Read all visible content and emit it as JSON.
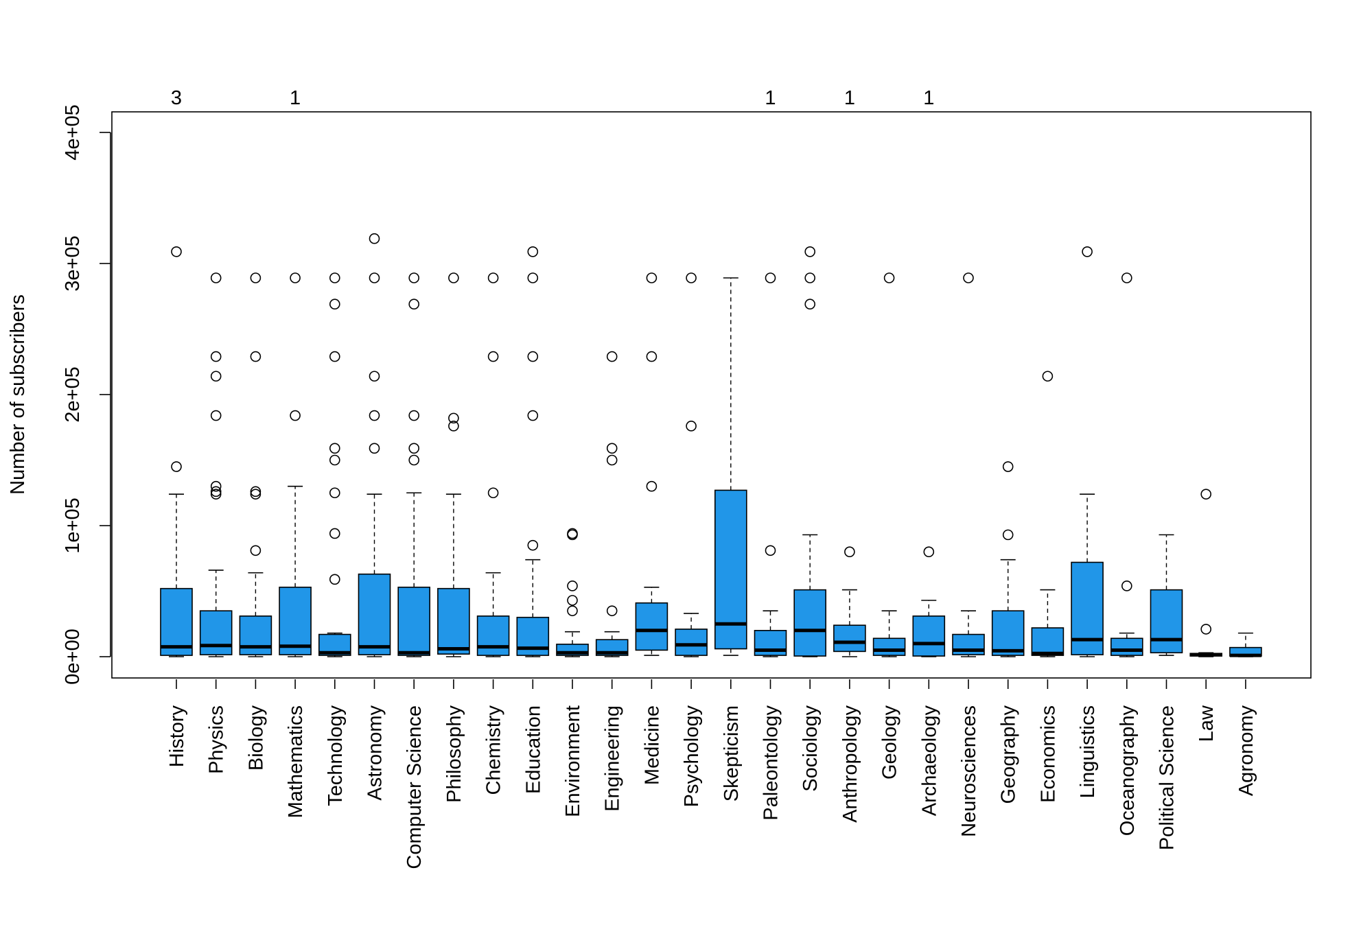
{
  "chart_data": {
    "type": "boxplot",
    "title": "",
    "xlabel": "",
    "ylabel": "Number of subscribers",
    "ylim": [
      -15000,
      415000
    ],
    "y_ticks": [
      {
        "value": 0,
        "label": "0e+00"
      },
      {
        "value": 100000,
        "label": "1e+05"
      },
      {
        "value": 200000,
        "label": "2e+05"
      },
      {
        "value": 300000,
        "label": "3e+05"
      },
      {
        "value": 400000,
        "label": "4e+05"
      }
    ],
    "fill_color": "#2196E8",
    "grid": false,
    "legend": "none",
    "categories": [
      "History",
      "Physics",
      "Biology",
      "Mathematics",
      "Technology",
      "Astronomy",
      "Computer Science",
      "Philosophy",
      "Chemistry",
      "Education",
      "Environment",
      "Engineering",
      "Medicine",
      "Psychology",
      "Skepticism",
      "Paleontology",
      "Sociology",
      "Anthropology",
      "Geology",
      "Archaeology",
      "Neurosciences",
      "Geography",
      "Economics",
      "Linguistics",
      "Oceanography",
      "Political Science",
      "Law",
      "Agronomy"
    ],
    "boxes": [
      {
        "whisker_low": 0,
        "q1": 1000,
        "median": 7500,
        "q3": 52000,
        "whisker_high": 124000,
        "outliers": [
          145000,
          309000
        ],
        "offscale_count": "3"
      },
      {
        "whisker_low": 0,
        "q1": 1500,
        "median": 8500,
        "q3": 35000,
        "whisker_high": 66000,
        "outliers": [
          124000,
          126000,
          130000,
          184000,
          214000,
          229000,
          289000
        ],
        "offscale_count": ""
      },
      {
        "whisker_low": 0,
        "q1": 1500,
        "median": 7500,
        "q3": 31000,
        "whisker_high": 64000,
        "outliers": [
          81000,
          124000,
          126000,
          229000,
          289000
        ],
        "offscale_count": ""
      },
      {
        "whisker_low": 0,
        "q1": 1500,
        "median": 8000,
        "q3": 53000,
        "whisker_high": 130000,
        "outliers": [
          184000,
          289000
        ],
        "offscale_count": "1"
      },
      {
        "whisker_low": 0,
        "q1": 1000,
        "median": 3000,
        "q3": 17000,
        "whisker_high": 18000,
        "outliers": [
          59000,
          94000,
          125000,
          150000,
          159000,
          229000,
          269000,
          289000
        ],
        "offscale_count": ""
      },
      {
        "whisker_low": 0,
        "q1": 1500,
        "median": 7500,
        "q3": 63000,
        "whisker_high": 124000,
        "outliers": [
          159000,
          184000,
          214000,
          289000,
          319000
        ],
        "offscale_count": ""
      },
      {
        "whisker_low": 0,
        "q1": 1000,
        "median": 3000,
        "q3": 53000,
        "whisker_high": 125000,
        "outliers": [
          150000,
          159000,
          184000,
          269000,
          289000
        ],
        "offscale_count": ""
      },
      {
        "whisker_low": 0,
        "q1": 2000,
        "median": 6000,
        "q3": 52000,
        "whisker_high": 124000,
        "outliers": [
          176000,
          182000,
          289000
        ],
        "offscale_count": ""
      },
      {
        "whisker_low": 0,
        "q1": 1000,
        "median": 7500,
        "q3": 31000,
        "whisker_high": 64000,
        "outliers": [
          125000,
          229000,
          289000
        ],
        "offscale_count": ""
      },
      {
        "whisker_low": 0,
        "q1": 1000,
        "median": 6500,
        "q3": 30000,
        "whisker_high": 74000,
        "outliers": [
          85000,
          184000,
          229000,
          289000,
          309000
        ],
        "offscale_count": ""
      },
      {
        "whisker_low": 0,
        "q1": 1000,
        "median": 3000,
        "q3": 9500,
        "whisker_high": 19000,
        "outliers": [
          35000,
          43000,
          54000,
          93000,
          94000
        ],
        "offscale_count": ""
      },
      {
        "whisker_low": 0,
        "q1": 1000,
        "median": 3000,
        "q3": 13000,
        "whisker_high": 19000,
        "outliers": [
          35000,
          150000,
          159000,
          229000
        ],
        "offscale_count": ""
      },
      {
        "whisker_low": 1000,
        "q1": 5000,
        "median": 20000,
        "q3": 41000,
        "whisker_high": 53000,
        "outliers": [
          130000,
          229000,
          289000
        ],
        "offscale_count": ""
      },
      {
        "whisker_low": 0,
        "q1": 1000,
        "median": 9000,
        "q3": 21000,
        "whisker_high": 33000,
        "outliers": [
          176000,
          289000
        ],
        "offscale_count": ""
      },
      {
        "whisker_low": 1000,
        "q1": 6000,
        "median": 25000,
        "q3": 127000,
        "whisker_high": 289000,
        "outliers": [],
        "offscale_count": ""
      },
      {
        "whisker_low": 0,
        "q1": 1000,
        "median": 5000,
        "q3": 20000,
        "whisker_high": 35000,
        "outliers": [
          81000,
          289000
        ],
        "offscale_count": "1"
      },
      {
        "whisker_low": 0,
        "q1": 500,
        "median": 20000,
        "q3": 51000,
        "whisker_high": 93000,
        "outliers": [
          269000,
          289000,
          309000
        ],
        "offscale_count": ""
      },
      {
        "whisker_low": 0,
        "q1": 4000,
        "median": 11000,
        "q3": 24000,
        "whisker_high": 51000,
        "outliers": [
          80000
        ],
        "offscale_count": "1"
      },
      {
        "whisker_low": 0,
        "q1": 1000,
        "median": 5000,
        "q3": 14000,
        "whisker_high": 35000,
        "outliers": [
          289000
        ],
        "offscale_count": ""
      },
      {
        "whisker_low": 0,
        "q1": 500,
        "median": 10000,
        "q3": 31000,
        "whisker_high": 43000,
        "outliers": [
          80000
        ],
        "offscale_count": "1"
      },
      {
        "whisker_low": 0,
        "q1": 1500,
        "median": 5000,
        "q3": 17000,
        "whisker_high": 35000,
        "outliers": [
          289000
        ],
        "offscale_count": ""
      },
      {
        "whisker_low": 0,
        "q1": 1000,
        "median": 4500,
        "q3": 35000,
        "whisker_high": 74000,
        "outliers": [
          93000,
          145000
        ],
        "offscale_count": ""
      },
      {
        "whisker_low": 0,
        "q1": 1000,
        "median": 2500,
        "q3": 22000,
        "whisker_high": 51000,
        "outliers": [
          214000
        ],
        "offscale_count": ""
      },
      {
        "whisker_low": 0,
        "q1": 1500,
        "median": 13000,
        "q3": 72000,
        "whisker_high": 124000,
        "outliers": [
          309000
        ],
        "offscale_count": ""
      },
      {
        "whisker_low": 0,
        "q1": 1000,
        "median": 5000,
        "q3": 14000,
        "whisker_high": 18000,
        "outliers": [
          54000,
          289000
        ],
        "offscale_count": ""
      },
      {
        "whisker_low": 1000,
        "q1": 3000,
        "median": 13000,
        "q3": 51000,
        "whisker_high": 93000,
        "outliers": [],
        "offscale_count": ""
      },
      {
        "whisker_low": 0,
        "q1": 500,
        "median": 1500,
        "q3": 2500,
        "whisker_high": 3000,
        "outliers": [
          21000,
          124000
        ],
        "offscale_count": ""
      },
      {
        "whisker_low": 0,
        "q1": 500,
        "median": 1000,
        "q3": 7000,
        "whisker_high": 18000,
        "outliers": [],
        "offscale_count": ""
      }
    ]
  }
}
